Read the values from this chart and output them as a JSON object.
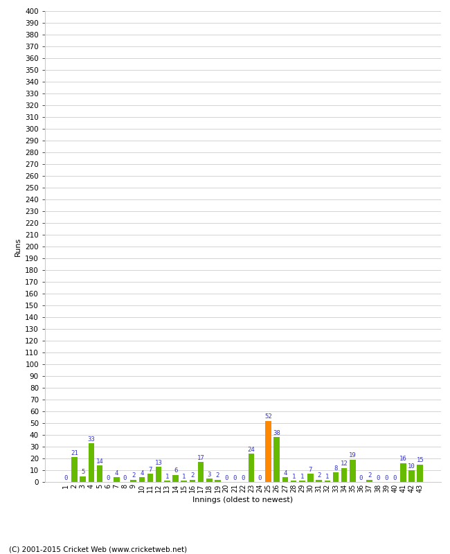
{
  "innings": [
    1,
    2,
    3,
    4,
    5,
    6,
    7,
    8,
    9,
    10,
    11,
    12,
    13,
    14,
    15,
    16,
    17,
    18,
    19,
    20,
    21,
    22,
    23,
    24,
    25,
    26,
    27,
    28,
    29,
    30,
    31,
    32,
    33,
    34,
    35,
    36,
    37,
    38,
    39,
    40,
    41,
    42,
    43
  ],
  "runs": [
    0,
    21,
    5,
    33,
    14,
    0,
    4,
    0,
    2,
    4,
    7,
    13,
    1,
    6,
    1,
    2,
    17,
    3,
    2,
    0,
    0,
    0,
    24,
    0,
    52,
    38,
    4,
    1,
    1,
    7,
    2,
    1,
    8,
    12,
    19,
    0,
    2,
    0,
    0,
    0,
    16,
    10,
    15
  ],
  "not_out": [
    25
  ],
  "green_color": "#66bb00",
  "orange_color": "#ff8800",
  "label_color": "#3333cc",
  "xlabel": "Innings (oldest to newest)",
  "ylabel": "Runs",
  "ylim": [
    0,
    400
  ],
  "footer": "(C) 2001-2015 Cricket Web (www.cricketweb.net)",
  "bg_color": "#ffffff",
  "grid_color": "#cccccc"
}
